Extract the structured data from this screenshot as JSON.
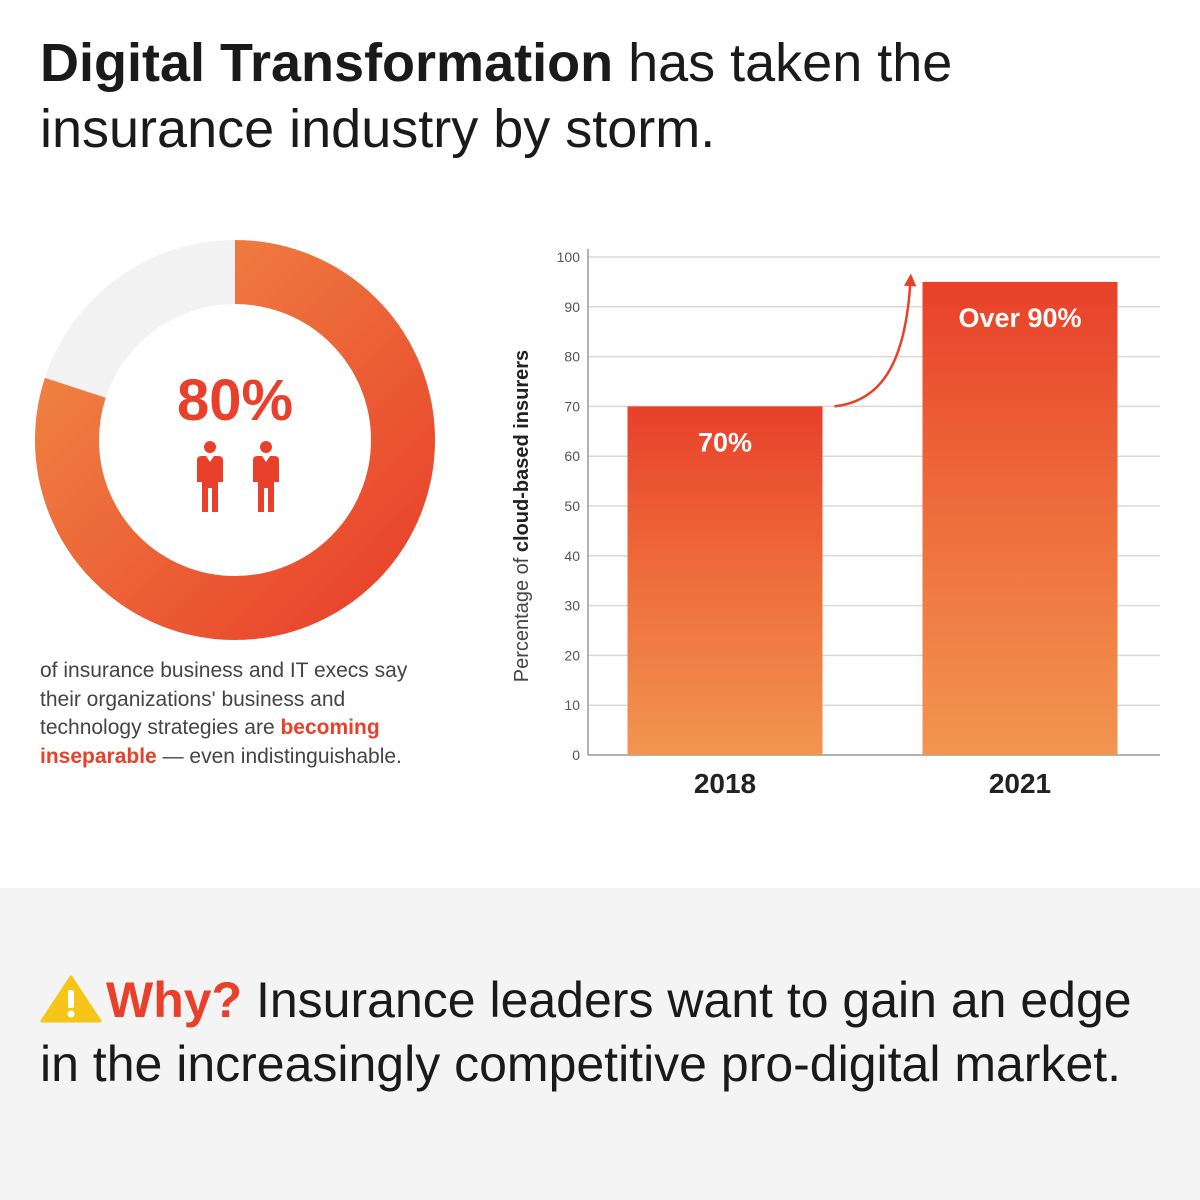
{
  "headline": {
    "bold": "Digital Transformation",
    "rest": " has taken the insurance industry by storm."
  },
  "stat": {
    "percent": "80%",
    "value": 0.8,
    "desc_pre": "of insurance business and IT execs say their organizations' business and technology strategies are ",
    "desc_highlight": "becoming inseparable",
    "desc_post": " — even indistinguishable."
  },
  "chart_data": {
    "type": "bar",
    "categories": [
      "2018",
      "2021"
    ],
    "values": [
      70,
      95
    ],
    "bar_labels": [
      "70%",
      "Over 90%"
    ],
    "ylabel_plain": "Percentage of ",
    "ylabel_bold": "cloud-based insurers",
    "ylim": [
      0,
      100
    ],
    "yticks": [
      "0",
      "10",
      "20",
      "30",
      "40",
      "50",
      "60",
      "70",
      "80",
      "90",
      "100"
    ],
    "grid": true
  },
  "bottom": {
    "why_label": "Why?",
    "why_text": " Insurance leaders want to gain an edge in the increasingly competitive pro-digital market."
  },
  "colors": {
    "accent": "#e8402a",
    "orange_light": "#f08a45",
    "track": "#f2f2f2"
  }
}
